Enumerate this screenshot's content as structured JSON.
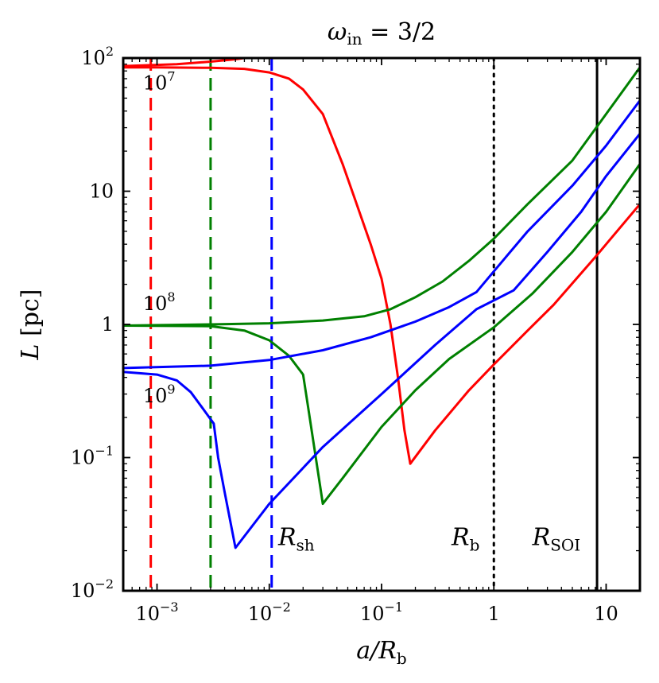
{
  "chart_data": {
    "type": "line",
    "title": "ω_in = 3/2",
    "title_parts": {
      "base": "ω",
      "sub": "in",
      "rest": " = 3/2"
    },
    "xlabel": "a/R_b",
    "xlabel_parts": {
      "base": "a/R",
      "sub": "b"
    },
    "ylabel": "L [pc]",
    "ylabel_parts": {
      "base": "L",
      "rest": " [pc]"
    },
    "xscale": "log",
    "yscale": "log",
    "xlim": [
      0.0005,
      20
    ],
    "ylim": [
      0.01,
      100
    ],
    "x_ticks": [
      {
        "value": 0.001,
        "base": "10",
        "exp": "−3"
      },
      {
        "value": 0.01,
        "base": "10",
        "exp": "−2"
      },
      {
        "value": 0.1,
        "base": "10",
        "exp": "−1"
      },
      {
        "value": 1,
        "base": "1",
        "exp": ""
      },
      {
        "value": 10,
        "base": "10",
        "exp": ""
      }
    ],
    "y_ticks": [
      {
        "value": 0.01,
        "base": "10",
        "exp": "−2"
      },
      {
        "value": 0.1,
        "base": "10",
        "exp": "−1"
      },
      {
        "value": 1,
        "base": "1",
        "exp": ""
      },
      {
        "value": 10,
        "base": "10",
        "exp": ""
      },
      {
        "value": 100,
        "base": "10",
        "exp": "2"
      }
    ],
    "colors": {
      "red": "#ff0000",
      "green": "#008000",
      "blue": "#0000ff",
      "black": "#000000"
    },
    "series": [
      {
        "name": "red-upper",
        "color": "red",
        "x": [
          0.0005,
          0.0015,
          0.003,
          0.005,
          0.007
        ],
        "y": [
          87,
          90,
          94,
          98,
          102
        ]
      },
      {
        "name": "red-lower",
        "color": "red",
        "x": [
          0.0005,
          0.001,
          0.003,
          0.006,
          0.01,
          0.015,
          0.02,
          0.03,
          0.045,
          0.06,
          0.08,
          0.1,
          0.12,
          0.14,
          0.16,
          0.18,
          0.3,
          0.6,
          1,
          2,
          3.4,
          8,
          20
        ],
        "y": [
          85,
          85,
          84.5,
          83,
          78,
          70,
          58,
          38,
          16,
          8,
          4,
          2.2,
          1,
          0.4,
          0.16,
          0.09,
          0.16,
          0.32,
          0.5,
          0.9,
          1.4,
          3.2,
          8
        ]
      },
      {
        "name": "green-upper",
        "color": "green",
        "x": [
          0.0005,
          0.003,
          0.01,
          0.03,
          0.07,
          0.12,
          0.2,
          0.35,
          0.6,
          1,
          2,
          5,
          10,
          20
        ],
        "y": [
          0.98,
          1.0,
          1.02,
          1.07,
          1.15,
          1.3,
          1.6,
          2.1,
          3.0,
          4.4,
          8,
          17,
          38,
          85
        ]
      },
      {
        "name": "green-lower",
        "color": "green",
        "x": [
          0.0005,
          0.003,
          0.006,
          0.01,
          0.015,
          0.02,
          0.022,
          0.03,
          0.045,
          0.1,
          0.2,
          0.4,
          1,
          2.2,
          5,
          10,
          20
        ],
        "y": [
          0.98,
          0.97,
          0.9,
          0.76,
          0.58,
          0.42,
          0.25,
          0.045,
          0.07,
          0.17,
          0.32,
          0.55,
          0.95,
          1.7,
          3.5,
          7,
          16
        ]
      },
      {
        "name": "blue-upper",
        "color": "blue",
        "x": [
          0.0005,
          0.003,
          0.01,
          0.03,
          0.08,
          0.2,
          0.4,
          0.7,
          1,
          2,
          5,
          10,
          20
        ],
        "y": [
          0.47,
          0.49,
          0.54,
          0.64,
          0.8,
          1.05,
          1.35,
          1.75,
          2.5,
          5,
          11,
          22,
          48
        ]
      },
      {
        "name": "blue-lower",
        "color": "blue",
        "x": [
          0.0005,
          0.001,
          0.0015,
          0.002,
          0.0025,
          0.0032,
          0.0035,
          0.004,
          0.005,
          0.01,
          0.03,
          0.1,
          0.3,
          0.7,
          1.5,
          3,
          6,
          10,
          20
        ],
        "y": [
          0.44,
          0.42,
          0.38,
          0.31,
          0.24,
          0.18,
          0.1,
          0.055,
          0.021,
          0.045,
          0.12,
          0.3,
          0.7,
          1.3,
          1.8,
          3.5,
          7,
          13,
          27
        ]
      }
    ],
    "vlines": [
      {
        "x": 0.00088,
        "color": "red",
        "style": "dashed"
      },
      {
        "x": 0.003,
        "color": "green",
        "style": "dashed"
      },
      {
        "x": 0.0105,
        "color": "blue",
        "style": "dashed"
      },
      {
        "x": 1,
        "color": "black",
        "style": "dotted"
      },
      {
        "x": 8.3,
        "color": "black",
        "style": "solid"
      }
    ],
    "curve_labels": [
      {
        "name": "label-1e7",
        "text_base": "10",
        "text_exp": "7",
        "x": 0.00075,
        "y": 58
      },
      {
        "name": "label-1e8",
        "text_base": "10",
        "text_exp": "8",
        "x": 0.00075,
        "y": 1.28
      },
      {
        "name": "label-1e9",
        "text_base": "10",
        "text_exp": "9",
        "x": 0.00075,
        "y": 0.26
      }
    ],
    "annotations": [
      {
        "name": "label-r-sh",
        "base": "R",
        "sub": "sh",
        "x": 0.012,
        "y": 0.022
      },
      {
        "name": "label-r-b",
        "base": "R",
        "sub": "b",
        "x": 0.42,
        "y": 0.022
      },
      {
        "name": "label-r-soi",
        "base": "R",
        "sub": "SOI",
        "x": 2.2,
        "y": 0.022
      }
    ]
  }
}
